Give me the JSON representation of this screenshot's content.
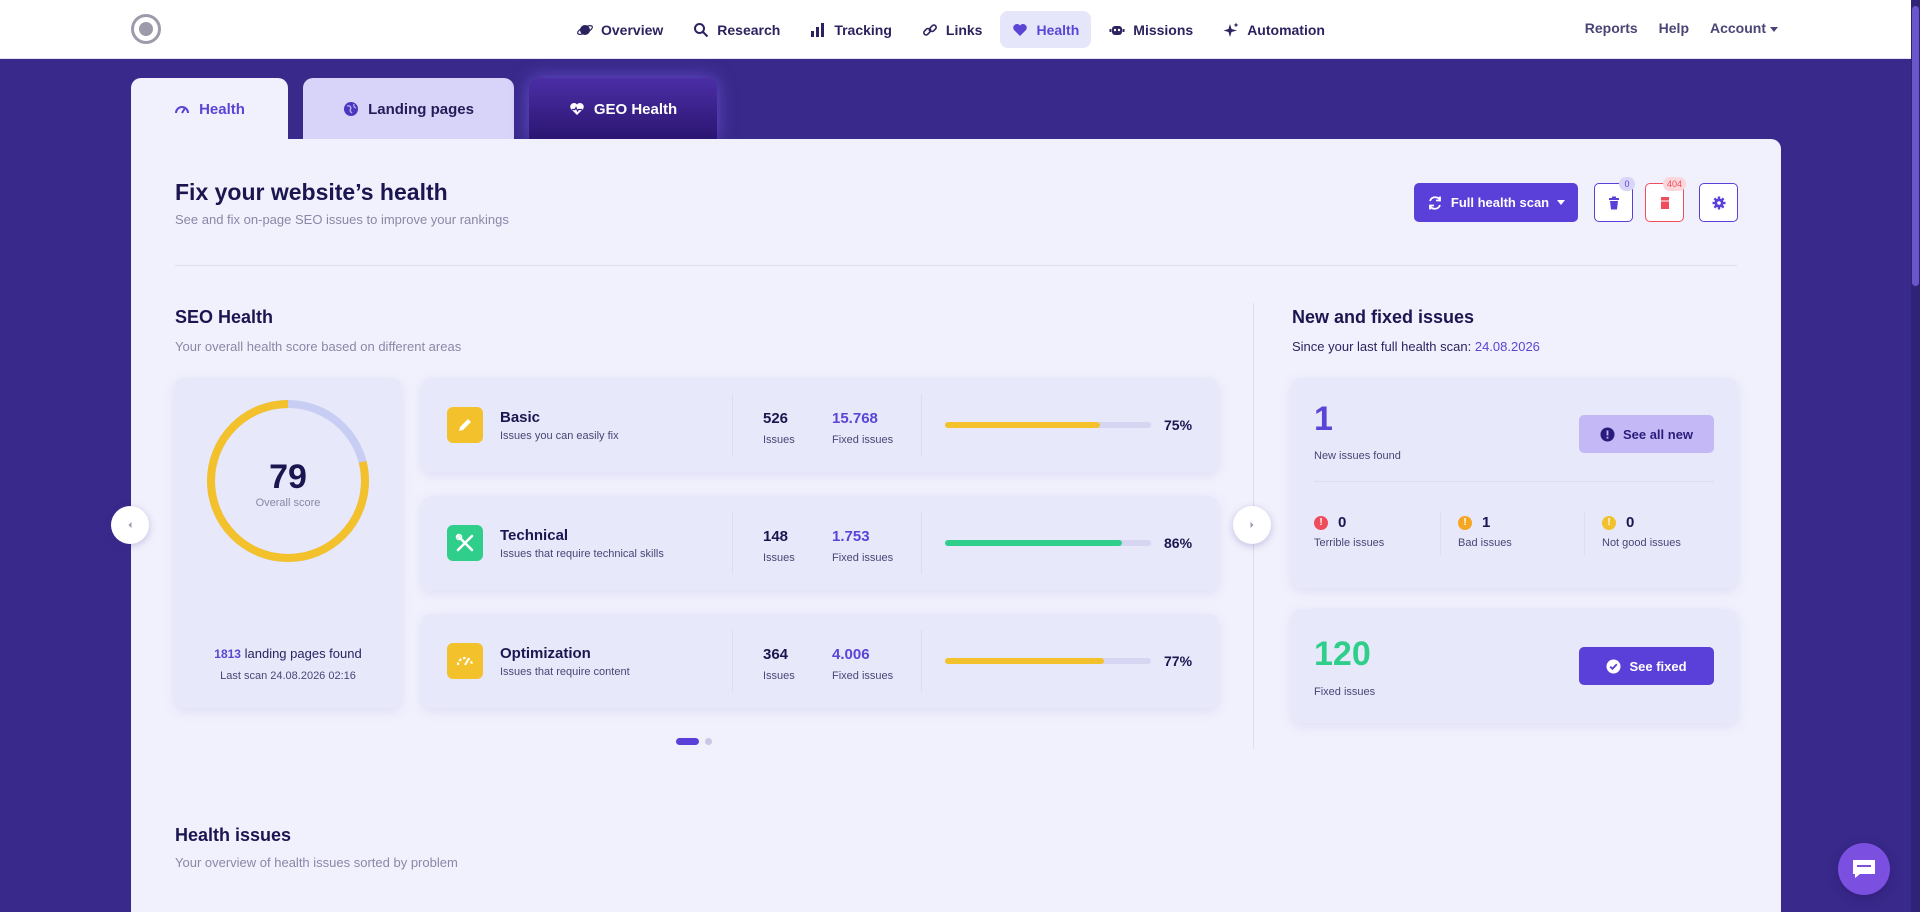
{
  "nav": {
    "items": [
      {
        "label": "Overview",
        "icon": "planet-icon",
        "active": false
      },
      {
        "label": "Research",
        "icon": "search-icon",
        "active": false
      },
      {
        "label": "Tracking",
        "icon": "bar-chart-icon",
        "active": false
      },
      {
        "label": "Links",
        "icon": "link-icon",
        "active": false
      },
      {
        "label": "Health",
        "icon": "heart-icon",
        "active": true
      },
      {
        "label": "Missions",
        "icon": "robot-icon",
        "active": false
      },
      {
        "label": "Automation",
        "icon": "sparkles-icon",
        "active": false
      }
    ],
    "right": {
      "reports": "Reports",
      "help": "Help",
      "account": "Account"
    }
  },
  "tabs": [
    {
      "label": "Health",
      "icon": "gauge-icon"
    },
    {
      "label": "Landing pages",
      "icon": "globe-icon"
    },
    {
      "label": "GEO Health",
      "icon": "heart-pulse-icon"
    }
  ],
  "header": {
    "title": "Fix your website’s health",
    "subtitle": "See and fix on-page SEO issues to improve your rankings",
    "scan_button": "Full health scan",
    "trash_badge": "0",
    "error_badge": "404"
  },
  "seo": {
    "title": "SEO Health",
    "subtitle": "Your overall health score based on different areas",
    "score": "79",
    "score_value": 0.79,
    "score_label": "Overall score",
    "pages_count": "1813",
    "pages_text": "landing pages found",
    "last_scan": "Last scan 24.08.2026 02:16",
    "categories": [
      {
        "name": "Basic",
        "desc": "Issues you can easily fix",
        "issues": "526",
        "issues_label": "Issues",
        "fixed": "15.768",
        "fixed_label": "Fixed issues",
        "percent": "75%",
        "progress": 0.75,
        "icon": "pencil-icon"
      },
      {
        "name": "Technical",
        "desc": "Issues that require technical skills",
        "issues": "148",
        "issues_label": "Issues",
        "fixed": "1.753",
        "fixed_label": "Fixed issues",
        "percent": "86%",
        "progress": 0.86,
        "icon": "tools-icon"
      },
      {
        "name": "Optimization",
        "desc": "Issues that require content",
        "issues": "364",
        "issues_label": "Issues",
        "fixed": "4.006",
        "fixed_label": "Fixed issues",
        "percent": "77%",
        "progress": 0.77,
        "icon": "speed-icon"
      }
    ]
  },
  "issues": {
    "title": "New and fixed issues",
    "subtitle": "Since your last full health scan:",
    "date": "24.08.2026",
    "new_count": "1",
    "new_label": "New issues found",
    "see_new": "See all new",
    "terrible": "0",
    "terrible_label": "Terrible issues",
    "bad": "1",
    "bad_label": "Bad issues",
    "notgood": "0",
    "notgood_label": "Not good issues",
    "fixed_count": "120",
    "fixed_label": "Fixed issues",
    "see_fixed": "See fixed"
  },
  "health_issues": {
    "title": "Health issues",
    "subtitle": "Your overview of health issues sorted by problem"
  },
  "colors": {
    "accent": "#5a3fd8",
    "yellow": "#f3c12b",
    "green": "#2fcf8b",
    "red": "#ef4d5b",
    "orange": "#f5a623",
    "background": "#38298a"
  }
}
